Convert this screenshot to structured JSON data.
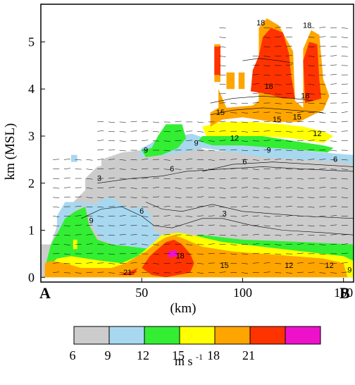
{
  "chart_data": {
    "type": "filled-contour",
    "ylabel": "km (MSL)",
    "xlabel": "(km)",
    "x_ticks": [
      50,
      100,
      150
    ],
    "y_ticks": [
      0,
      1,
      2,
      3,
      4,
      5
    ],
    "xlim": [
      0,
      155
    ],
    "ylim": [
      -0.1,
      5.8
    ],
    "endpoint_left": "A",
    "endpoint_right": "B",
    "colorbar": {
      "levels": [
        6,
        9,
        12,
        15,
        18,
        21
      ],
      "colors": [
        "#cccccc",
        "#a8d8f0",
        "#33ee33",
        "#ffff00",
        "#ffa500",
        "#ff3300",
        "#ee11cc"
      ],
      "label": "m s",
      "label_exp": "-1"
    },
    "contour_labels": [
      {
        "x": 132,
        "y": 5.3,
        "text": "18"
      },
      {
        "x": 109,
        "y": 5.35,
        "text": "18"
      },
      {
        "x": 113,
        "y": 4.0,
        "text": "18"
      },
      {
        "x": 131,
        "y": 3.8,
        "text": "18"
      },
      {
        "x": 89,
        "y": 3.45,
        "text": "15"
      },
      {
        "x": 117,
        "y": 3.3,
        "text": "15"
      },
      {
        "x": 127,
        "y": 3.35,
        "text": "15"
      },
      {
        "x": 137,
        "y": 3.0,
        "text": "12"
      },
      {
        "x": 96,
        "y": 2.9,
        "text": "12"
      },
      {
        "x": 77,
        "y": 2.8,
        "text": "9"
      },
      {
        "x": 52,
        "y": 2.65,
        "text": "9"
      },
      {
        "x": 113,
        "y": 2.65,
        "text": "9"
      },
      {
        "x": 65,
        "y": 2.25,
        "text": "6"
      },
      {
        "x": 101,
        "y": 2.4,
        "text": "6"
      },
      {
        "x": 146,
        "y": 2.45,
        "text": "6"
      },
      {
        "x": 29,
        "y": 2.05,
        "text": "3"
      },
      {
        "x": 50,
        "y": 1.35,
        "text": "6"
      },
      {
        "x": 91,
        "y": 1.3,
        "text": "3"
      },
      {
        "x": 25,
        "y": 1.15,
        "text": "9"
      },
      {
        "x": 69,
        "y": 0.4,
        "text": "18"
      },
      {
        "x": 91,
        "y": 0.2,
        "text": "15"
      },
      {
        "x": 123,
        "y": 0.2,
        "text": "12"
      },
      {
        "x": 143,
        "y": 0.2,
        "text": "12"
      },
      {
        "x": 153,
        "y": 0.1,
        "text": "9"
      },
      {
        "x": 43,
        "y": 0.05,
        "text": "21"
      }
    ]
  }
}
